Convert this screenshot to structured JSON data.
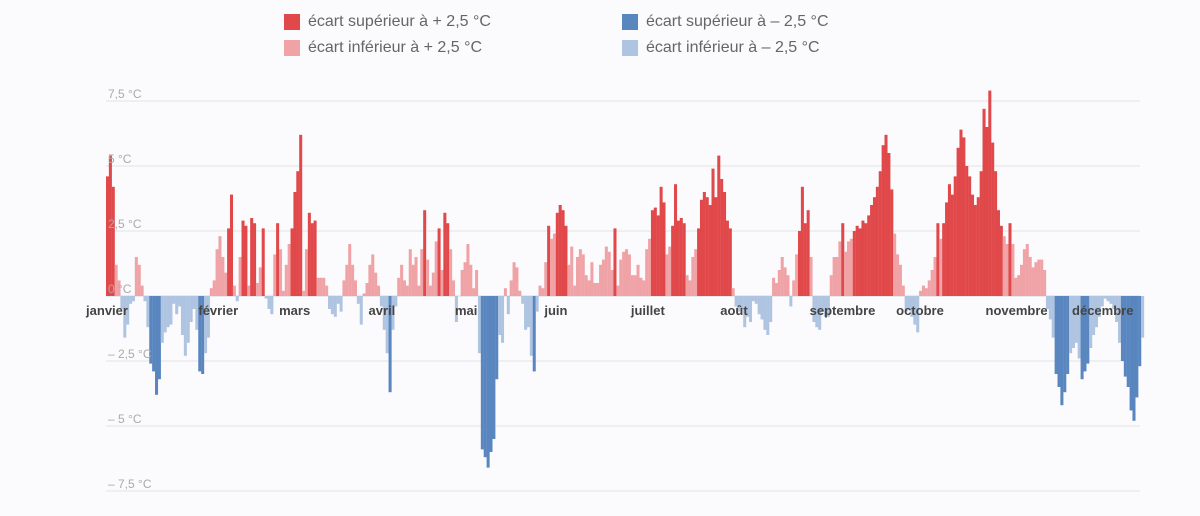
{
  "legend": {
    "items": [
      {
        "label": "écart supérieur à + 2,5 °C",
        "color": "#e0484a"
      },
      {
        "label": "écart inférieur à + 2,5 °C",
        "color": "#f0a3a6"
      },
      {
        "label": "écart supérieur à – 2,5 °C",
        "color": "#5a86c0"
      },
      {
        "label": "écart inférieur à – 2,5 °C",
        "color": "#aec4e0"
      }
    ]
  },
  "chart_data": {
    "type": "bar",
    "title": "",
    "xlabel": "",
    "ylabel": "",
    "ylim": [
      -7.5,
      7.5
    ],
    "y_ticks": [
      {
        "value": 7.5,
        "label": "7,5 °C"
      },
      {
        "value": 5,
        "label": "5 °C"
      },
      {
        "value": 2.5,
        "label": "2,5 °C"
      },
      {
        "value": 0,
        "label": "0 °C"
      },
      {
        "value": -2.5,
        "label": "– 2,5 °C"
      },
      {
        "value": -5,
        "label": "– 5 °C"
      },
      {
        "value": -7.5,
        "label": "– 7,5 °C"
      }
    ],
    "month_labels": [
      "janvier",
      "février",
      "mars",
      "avril",
      "mai",
      "juin",
      "juillet",
      "août",
      "septembre",
      "octobre",
      "novembre",
      "décembre"
    ],
    "month_day_index": [
      0,
      31,
      59,
      90,
      120,
      151,
      181,
      212,
      243,
      273,
      304,
      334
    ],
    "threshold": 2.5,
    "colors": {
      "hot_strong": "#e0484a",
      "hot_weak": "#f0a3a6",
      "cold_strong": "#5a86c0",
      "cold_weak": "#aec4e0"
    },
    "values": [
      4.6,
      5.4,
      4.2,
      1.2,
      0.6,
      -0.5,
      -1.6,
      -1.1,
      -0.3,
      -0.2,
      1.5,
      1.2,
      0.4,
      -0.2,
      -1.2,
      -2.6,
      -2.9,
      -3.8,
      -3.2,
      -1.8,
      -1.4,
      -1.2,
      -1.1,
      -0.3,
      -0.7,
      -0.4,
      -1.5,
      -2.3,
      -1.8,
      -1.0,
      -0.5,
      -1.3,
      -2.9,
      -3.0,
      -2.2,
      -1.6,
      0.3,
      0.6,
      1.8,
      2.3,
      1.5,
      0.9,
      2.6,
      3.9,
      0.4,
      -0.2,
      1.5,
      2.9,
      2.7,
      0.4,
      3.0,
      2.8,
      0.5,
      1.1,
      2.6,
      -0.1,
      -0.5,
      -0.7,
      1.6,
      2.8,
      1.8,
      0.2,
      1.2,
      2.0,
      2.6,
      4.0,
      4.8,
      6.2,
      0.2,
      1.8,
      3.2,
      2.8,
      2.9,
      0.7,
      0.7,
      0.7,
      0.4,
      -0.5,
      -0.7,
      -0.8,
      -0.3,
      -0.6,
      0.6,
      1.2,
      2.0,
      1.2,
      0.6,
      -0.3,
      -1.1,
      0.1,
      0.5,
      1.2,
      1.6,
      0.9,
      0.4,
      -0.4,
      -1.3,
      -2.2,
      -3.7,
      -1.3,
      -0.4,
      0.7,
      1.2,
      0.6,
      0.4,
      1.8,
      1.2,
      1.5,
      0.4,
      1.8,
      3.3,
      1.4,
      0.4,
      0.9,
      2.1,
      2.6,
      1.0,
      3.2,
      2.8,
      1.8,
      0.6,
      -1.0,
      0.0,
      1.0,
      1.3,
      2.0,
      1.2,
      0.3,
      1.0,
      -2.2,
      -5.9,
      -6.2,
      -6.6,
      -6.0,
      -5.5,
      -3.2,
      -1.5,
      -1.8,
      0.3,
      -0.7,
      0.6,
      1.3,
      1.1,
      0.2,
      -0.3,
      -1.3,
      -1.2,
      -2.3,
      -2.9,
      -0.6,
      0.4,
      0.3,
      1.3,
      2.7,
      2.2,
      2.4,
      3.2,
      3.5,
      3.3,
      2.7,
      1.2,
      1.9,
      0.4,
      1.5,
      1.8,
      1.6,
      0.8,
      0.6,
      1.3,
      0.5,
      0.5,
      1.2,
      1.4,
      1.9,
      1.7,
      1.0,
      2.6,
      0.4,
      1.4,
      1.7,
      1.8,
      1.6,
      0.8,
      0.8,
      1.2,
      0.7,
      0.6,
      1.8,
      2.2,
      3.3,
      3.4,
      3.1,
      4.2,
      3.6,
      1.6,
      1.9,
      2.7,
      4.3,
      2.9,
      3.0,
      2.8,
      0.8,
      0.6,
      1.5,
      1.8,
      2.6,
      3.7,
      4.0,
      3.8,
      3.5,
      4.9,
      3.8,
      5.4,
      4.5,
      4.0,
      2.9,
      2.6,
      0.3,
      -0.4,
      -0.6,
      -0.5,
      -1.2,
      -0.8,
      -1.0,
      -0.2,
      -0.3,
      -0.7,
      -0.9,
      -1.3,
      -1.5,
      -1.0,
      0.7,
      0.5,
      1.0,
      1.5,
      1.1,
      0.8,
      -0.4,
      0.6,
      1.6,
      2.5,
      4.2,
      2.8,
      3.3,
      1.5,
      -1.0,
      -1.2,
      -1.3,
      -0.6,
      -0.8,
      -0.8,
      0.8,
      1.5,
      1.5,
      2.1,
      2.8,
      1.7,
      2.1,
      2.2,
      2.5,
      2.7,
      2.6,
      2.9,
      2.8,
      3.1,
      3.5,
      3.8,
      4.2,
      4.8,
      5.8,
      6.2,
      5.5,
      4.1,
      2.4,
      1.6,
      1.2,
      0.4,
      -0.6,
      -0.5,
      -0.8,
      -1.1,
      -1.4,
      0.2,
      0.4,
      0.3,
      0.6,
      1.0,
      1.5,
      2.8,
      2.2,
      2.8,
      3.6,
      4.3,
      3.9,
      4.6,
      5.7,
      6.4,
      6.1,
      5.0,
      4.6,
      3.9,
      3.5,
      3.8,
      4.8,
      7.2,
      6.5,
      7.9,
      5.9,
      4.8,
      3.3,
      2.7,
      2.3,
      2.0,
      2.8,
      2.0,
      0.7,
      0.8,
      1.2,
      1.8,
      2.0,
      1.5,
      1.1,
      1.3,
      1.4,
      1.4,
      1.0,
      -0.5,
      -0.9,
      -1.6,
      -3.0,
      -3.5,
      -4.2,
      -3.7,
      -3.0,
      -2.2,
      -2.0,
      -1.8,
      -2.4,
      -3.2,
      -2.9,
      -2.6,
      -2.0,
      -1.5,
      -1.2,
      -0.8,
      -0.4,
      -0.1,
      -0.2,
      -0.3,
      -0.5,
      -1.0,
      -1.8,
      -2.5,
      -3.1,
      -3.5,
      -4.4,
      -4.8,
      -3.9,
      -2.7,
      -1.6
    ]
  }
}
